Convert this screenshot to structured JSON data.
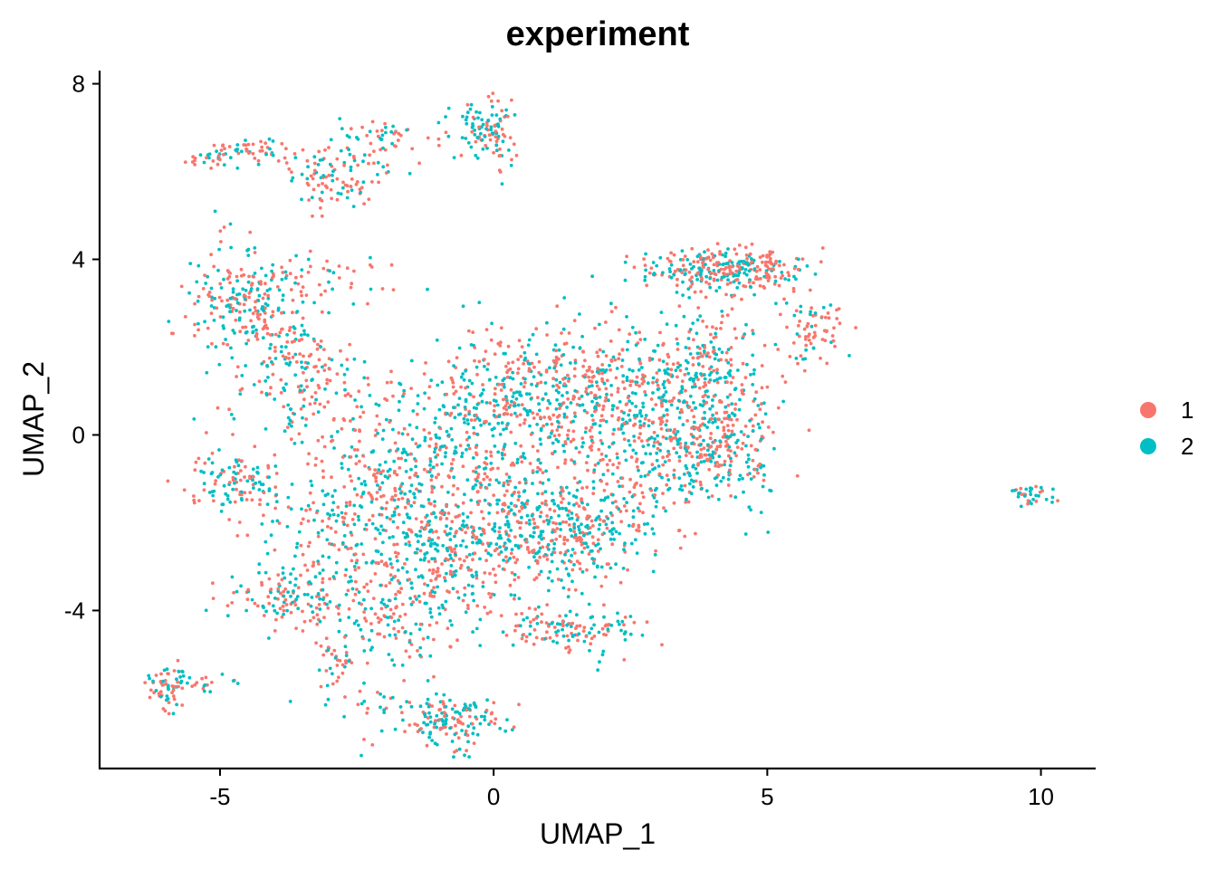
{
  "chart_data": {
    "type": "scatter",
    "title": "experiment",
    "xlabel": "UMAP_1",
    "ylabel": "UMAP_2",
    "xlim": [
      -7.2,
      11.0
    ],
    "ylim": [
      -7.6,
      8.3
    ],
    "x_ticks": [
      -5,
      0,
      5,
      10
    ],
    "x_tick_labels": [
      "-5",
      "0",
      "5",
      "10"
    ],
    "y_ticks": [
      -4,
      0,
      4,
      8
    ],
    "y_tick_labels": [
      "-4",
      "0",
      "4",
      "8"
    ],
    "grid": false,
    "legend_position": "right",
    "series": [
      {
        "name": "1",
        "color": "#F8766D"
      },
      {
        "name": "2",
        "color": "#00BFC4"
      }
    ],
    "clusters": [
      {
        "center": [
          -4.9,
          6.35
        ],
        "spread": [
          0.35,
          0.15
        ],
        "n": 40,
        "frac2": 0.4
      },
      {
        "center": [
          -4.3,
          6.55
        ],
        "spread": [
          0.3,
          0.12
        ],
        "n": 30,
        "frac2": 0.45
      },
      {
        "center": [
          -3.0,
          5.9
        ],
        "spread": [
          0.45,
          0.45
        ],
        "n": 90,
        "frac2": 0.5
      },
      {
        "center": [
          -2.1,
          6.85
        ],
        "spread": [
          0.35,
          0.15
        ],
        "n": 35,
        "frac2": 0.5
      },
      {
        "center": [
          -2.3,
          6.2
        ],
        "spread": [
          0.35,
          0.2
        ],
        "n": 20,
        "frac2": 0.3
      },
      {
        "center": [
          -0.9,
          6.7
        ],
        "spread": [
          0.5,
          0.35
        ],
        "n": 15,
        "frac2": 0.4
      },
      {
        "center": [
          -0.1,
          7.0
        ],
        "spread": [
          0.25,
          0.3
        ],
        "n": 90,
        "frac2": 0.6
      },
      {
        "center": [
          0.15,
          6.5
        ],
        "spread": [
          0.1,
          0.4
        ],
        "n": 15,
        "frac2": 0.2
      },
      {
        "center": [
          -4.6,
          3.0
        ],
        "spread": [
          0.5,
          0.6
        ],
        "n": 220,
        "frac2": 0.45
      },
      {
        "center": [
          -3.6,
          1.5
        ],
        "spread": [
          0.5,
          0.8
        ],
        "n": 170,
        "frac2": 0.5
      },
      {
        "center": [
          -3.2,
          3.6
        ],
        "spread": [
          0.9,
          0.35
        ],
        "n": 40,
        "frac2": 0.3
      },
      {
        "center": [
          -2.3,
          0.5
        ],
        "spread": [
          0.5,
          0.7
        ],
        "n": 50,
        "frac2": 0.4
      },
      {
        "center": [
          -4.7,
          -1.1
        ],
        "spread": [
          0.45,
          0.3
        ],
        "n": 90,
        "frac2": 0.55
      },
      {
        "center": [
          -4.8,
          -0.3
        ],
        "spread": [
          0.5,
          0.8
        ],
        "n": 30,
        "frac2": 0.3
      },
      {
        "center": [
          -2.6,
          -2.0
        ],
        "spread": [
          0.9,
          0.9
        ],
        "n": 220,
        "frac2": 0.5
      },
      {
        "center": [
          -1.4,
          -0.8
        ],
        "spread": [
          0.8,
          0.7
        ],
        "n": 200,
        "frac2": 0.55
      },
      {
        "center": [
          -0.8,
          -2.8
        ],
        "spread": [
          0.9,
          0.8
        ],
        "n": 350,
        "frac2": 0.55
      },
      {
        "center": [
          0.7,
          -1.8
        ],
        "spread": [
          0.8,
          0.7
        ],
        "n": 260,
        "frac2": 0.55
      },
      {
        "center": [
          1.7,
          -2.4
        ],
        "spread": [
          0.6,
          0.6
        ],
        "n": 170,
        "frac2": 0.55
      },
      {
        "center": [
          -3.7,
          -3.7
        ],
        "spread": [
          0.5,
          0.35
        ],
        "n": 130,
        "frac2": 0.55
      },
      {
        "center": [
          -1.8,
          -4.3
        ],
        "spread": [
          0.5,
          0.6
        ],
        "n": 110,
        "frac2": 0.45
      },
      {
        "center": [
          -2.9,
          -5.2
        ],
        "spread": [
          0.2,
          0.25
        ],
        "n": 30,
        "frac2": 0.2
      },
      {
        "center": [
          0.8,
          -4.4
        ],
        "spread": [
          0.4,
          0.25
        ],
        "n": 50,
        "frac2": 0.4
      },
      {
        "center": [
          1.8,
          -4.5
        ],
        "spread": [
          0.5,
          0.25
        ],
        "n": 80,
        "frac2": 0.5
      },
      {
        "center": [
          -0.8,
          -6.5
        ],
        "spread": [
          0.45,
          0.3
        ],
        "n": 150,
        "frac2": 0.55
      },
      {
        "center": [
          -2.2,
          -6.2
        ],
        "spread": [
          0.6,
          0.35
        ],
        "n": 25,
        "frac2": 0.5
      },
      {
        "center": [
          -6.0,
          -5.8
        ],
        "spread": [
          0.15,
          0.3
        ],
        "n": 50,
        "frac2": 0.5
      },
      {
        "center": [
          -5.4,
          -5.6
        ],
        "spread": [
          0.4,
          0.15
        ],
        "n": 30,
        "frac2": 0.7
      },
      {
        "center": [
          0.0,
          0.6
        ],
        "spread": [
          0.8,
          0.8
        ],
        "n": 260,
        "frac2": 0.55
      },
      {
        "center": [
          1.3,
          1.0
        ],
        "spread": [
          0.9,
          0.8
        ],
        "n": 300,
        "frac2": 0.45
      },
      {
        "center": [
          2.8,
          0.6
        ],
        "spread": [
          0.8,
          0.9
        ],
        "n": 280,
        "frac2": 0.45
      },
      {
        "center": [
          3.9,
          1.5
        ],
        "spread": [
          0.6,
          1.0
        ],
        "n": 260,
        "frac2": 0.5
      },
      {
        "center": [
          4.1,
          3.8
        ],
        "spread": [
          0.7,
          0.25
        ],
        "n": 240,
        "frac2": 0.5
      },
      {
        "center": [
          5.0,
          3.7
        ],
        "spread": [
          0.35,
          0.2
        ],
        "n": 60,
        "frac2": 0.3
      },
      {
        "center": [
          4.0,
          -0.5
        ],
        "spread": [
          0.6,
          0.6
        ],
        "n": 230,
        "frac2": 0.55
      },
      {
        "center": [
          5.8,
          2.3
        ],
        "spread": [
          0.3,
          0.35
        ],
        "n": 70,
        "frac2": 0.35
      },
      {
        "center": [
          2.8,
          -1.2
        ],
        "spread": [
          0.6,
          0.6
        ],
        "n": 80,
        "frac2": 0.5
      },
      {
        "center": [
          9.8,
          -1.4
        ],
        "spread": [
          0.25,
          0.12
        ],
        "n": 35,
        "frac2": 0.6
      }
    ]
  }
}
